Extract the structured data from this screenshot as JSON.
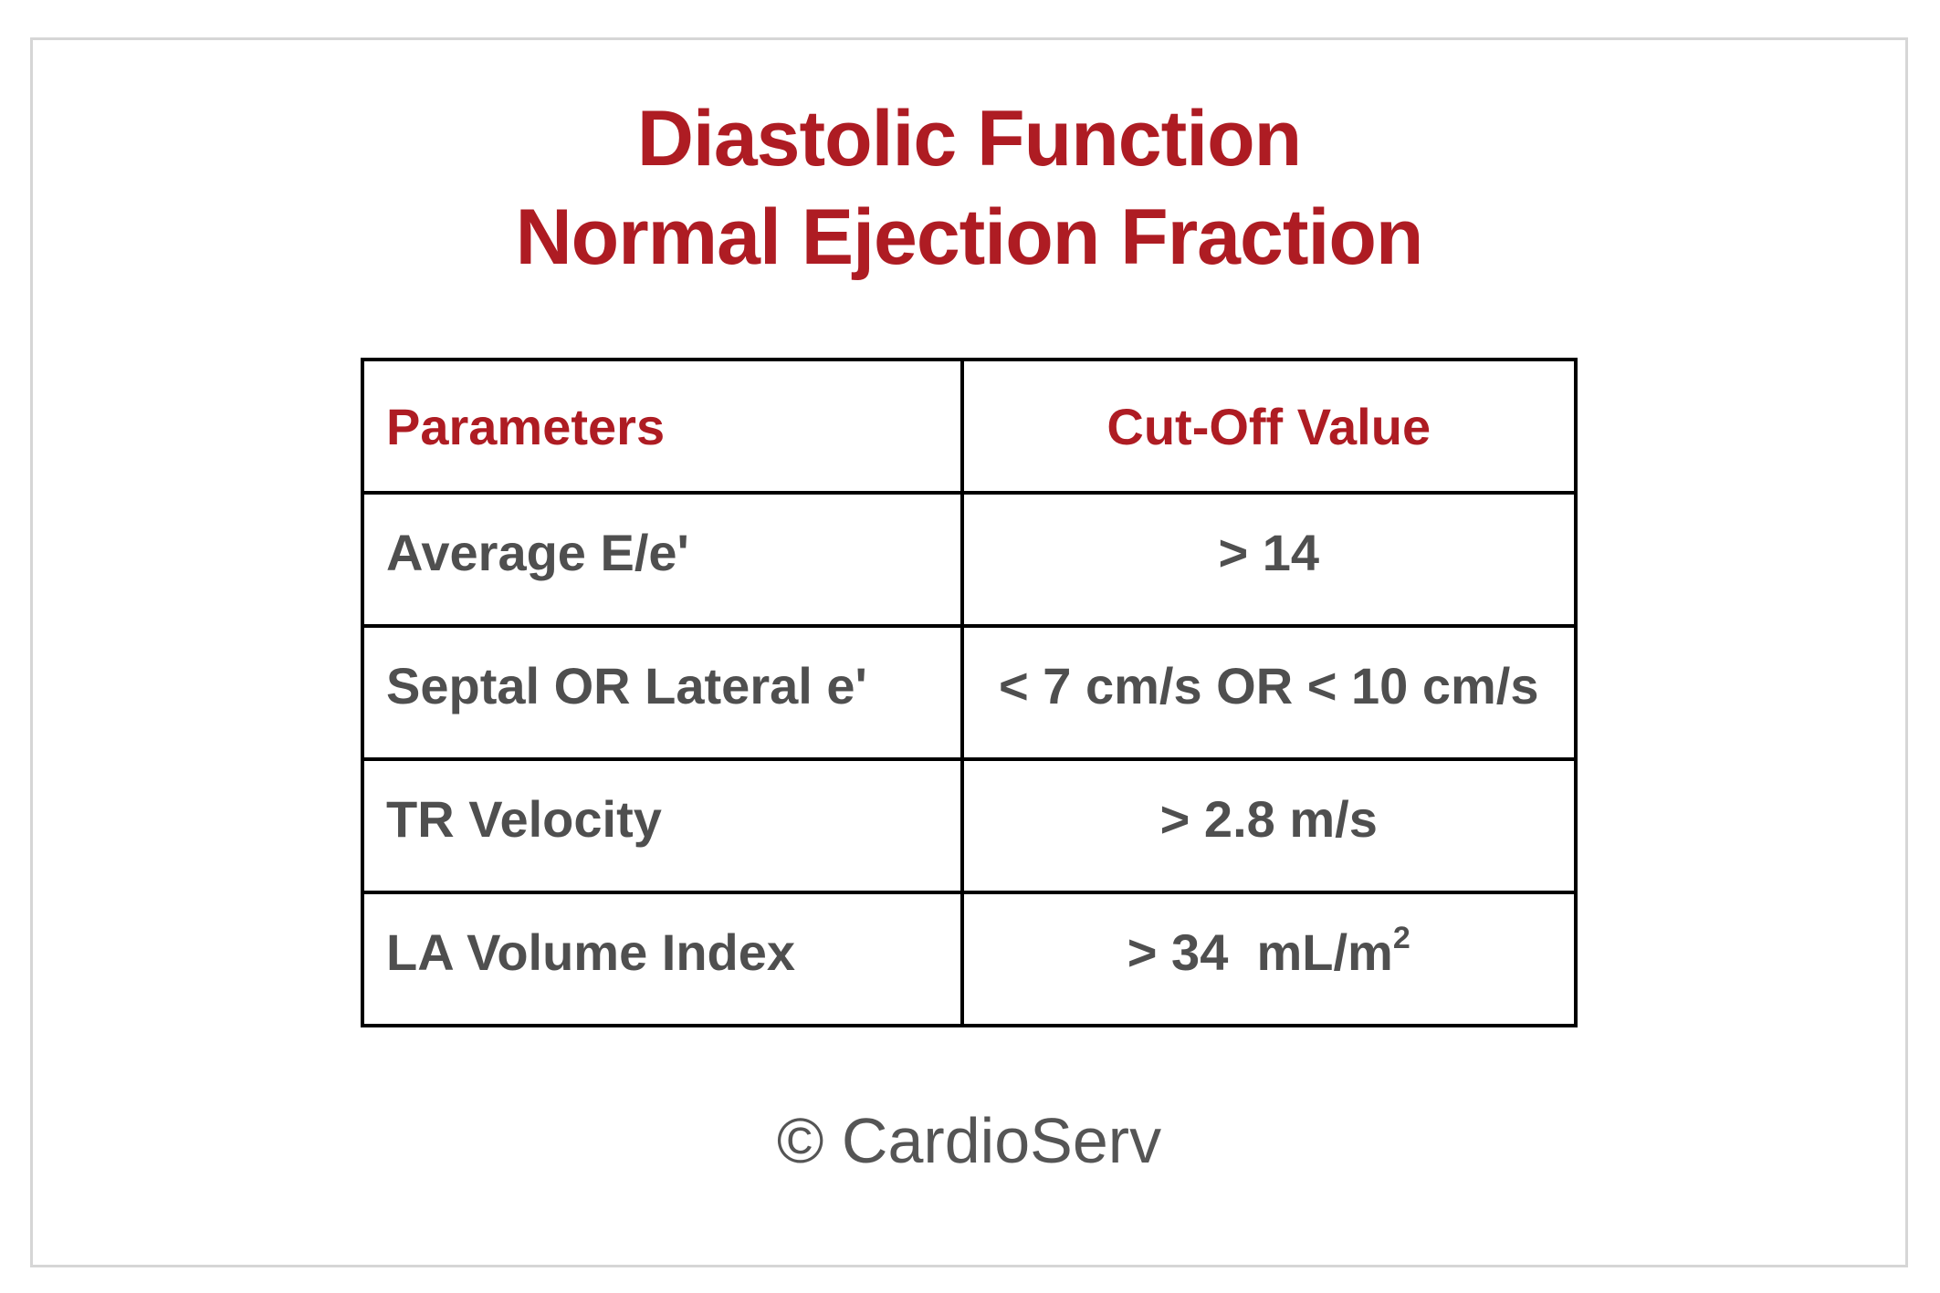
{
  "page": {
    "title_line1": "Diastolic Function",
    "title_line2": "Normal Ejection Fraction"
  },
  "colors": {
    "accent_red": "#ae1c23",
    "cell_text_gray": "#4f4f4f",
    "table_border_black": "#000000",
    "card_border_gray": "#d6d6d6",
    "footer_gray": "#555555",
    "background": "#ffffff"
  },
  "table": {
    "headers": [
      {
        "label": "Parameters"
      },
      {
        "label": "Cut-Off Value"
      }
    ],
    "rows": [
      {
        "param": "Average E/e'",
        "value": "> 14"
      },
      {
        "param": "Septal OR Lateral e'",
        "value": "< 7 cm/s OR < 10 cm/s"
      },
      {
        "param": "TR Velocity",
        "value": "> 2.8 m/s"
      },
      {
        "param": "LA Volume Index",
        "value": "> 34  mL/m",
        "value_sup": "2"
      }
    ]
  },
  "footer": {
    "copyright": "© CardioServ"
  }
}
